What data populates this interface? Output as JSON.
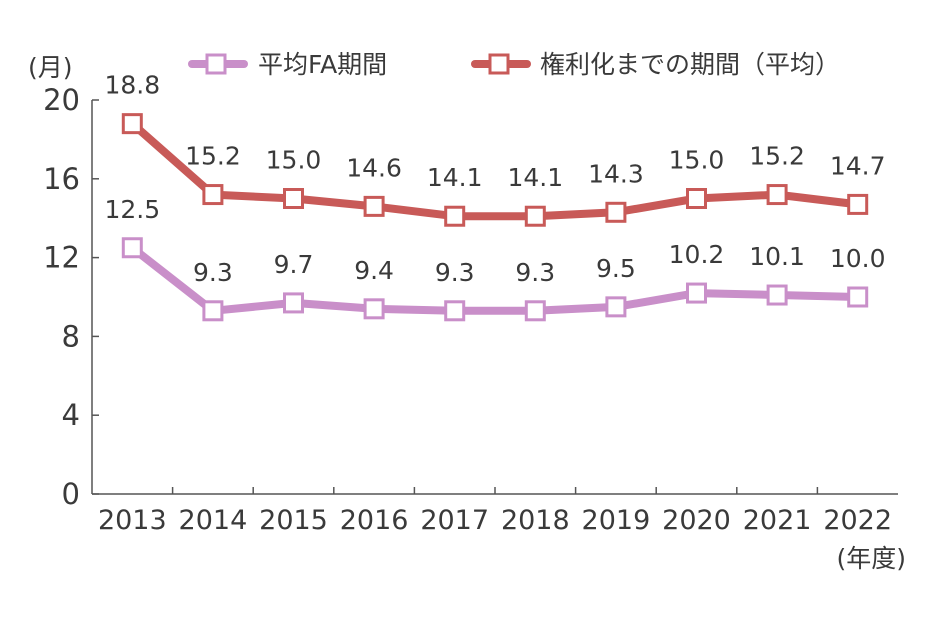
{
  "chart_data": {
    "type": "line",
    "ylabel": "(月)",
    "xlabel": "(年度)",
    "ylim": [
      0,
      20
    ],
    "yticks": [
      0,
      4,
      8,
      12,
      16,
      20
    ],
    "categories": [
      "2013",
      "2014",
      "2015",
      "2016",
      "2017",
      "2018",
      "2019",
      "2020",
      "2021",
      "2022"
    ],
    "series": [
      {
        "name": "平均FA期間",
        "color": "#c98fc9",
        "values": [
          12.5,
          9.3,
          9.7,
          9.4,
          9.3,
          9.3,
          9.5,
          10.2,
          10.1,
          10.0
        ],
        "labels": [
          "12.5",
          "9.3",
          "9.7",
          "9.4",
          "9.3",
          "9.3",
          "9.5",
          "10.2",
          "10.1",
          "10.0"
        ]
      },
      {
        "name": "権利化までの期間（平均）",
        "color": "#c85a58",
        "values": [
          18.8,
          15.2,
          15.0,
          14.6,
          14.1,
          14.1,
          14.3,
          15.0,
          15.2,
          14.7
        ],
        "labels": [
          "18.8",
          "15.2",
          "15.0",
          "14.6",
          "14.1",
          "14.1",
          "14.3",
          "15.0",
          "15.2",
          "14.7"
        ]
      }
    ],
    "legend_position": "top"
  }
}
